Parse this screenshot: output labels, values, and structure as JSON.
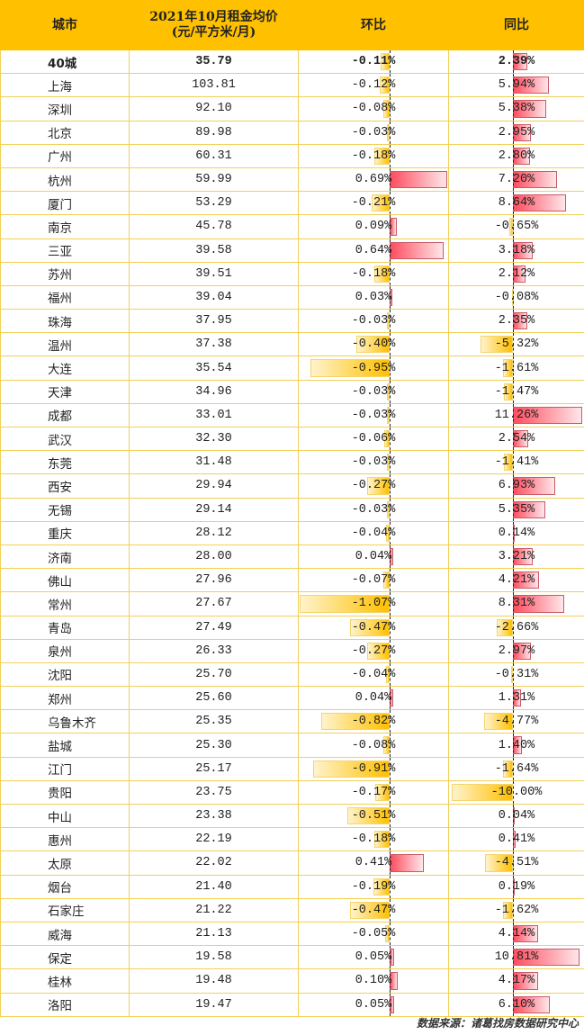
{
  "header": {
    "city": "城市",
    "price_line1": "2021年10月租金均价",
    "price_line2": "(元/平方米/月)",
    "mom": "环比",
    "yoy": "同比"
  },
  "colors": {
    "header_bg": "#ffc000",
    "negative_bar": "#ffc000",
    "positive_bar": "#ff4d5e",
    "grid": "#f2cf57"
  },
  "rows": [
    [
      "40城",
      "35.79",
      -0.11,
      2.39
    ],
    [
      "上海",
      "103.81",
      -0.12,
      5.94
    ],
    [
      "深圳",
      "92.10",
      -0.08,
      5.38
    ],
    [
      "北京",
      "89.98",
      -0.03,
      2.95
    ],
    [
      "广州",
      "60.31",
      -0.18,
      2.8
    ],
    [
      "杭州",
      "59.99",
      0.69,
      7.2
    ],
    [
      "厦门",
      "53.29",
      -0.21,
      8.64
    ],
    [
      "南京",
      "45.78",
      0.09,
      -0.65
    ],
    [
      "三亚",
      "39.58",
      0.64,
      3.18
    ],
    [
      "苏州",
      "39.51",
      -0.18,
      2.12
    ],
    [
      "福州",
      "39.04",
      0.03,
      -0.08
    ],
    [
      "珠海",
      "37.95",
      -0.03,
      2.35
    ],
    [
      "温州",
      "37.38",
      -0.4,
      -5.32
    ],
    [
      "大连",
      "35.54",
      -0.95,
      -1.61
    ],
    [
      "天津",
      "34.96",
      -0.03,
      -1.47
    ],
    [
      "成都",
      "33.01",
      -0.03,
      11.26
    ],
    [
      "武汉",
      "32.30",
      -0.06,
      2.54
    ],
    [
      "东莞",
      "31.48",
      -0.03,
      -1.41
    ],
    [
      "西安",
      "29.94",
      -0.27,
      6.93
    ],
    [
      "无锡",
      "29.14",
      -0.03,
      5.35
    ],
    [
      "重庆",
      "28.12",
      -0.04,
      0.14
    ],
    [
      "济南",
      "28.00",
      0.04,
      3.21
    ],
    [
      "佛山",
      "27.96",
      -0.07,
      4.21
    ],
    [
      "常州",
      "27.67",
      -1.07,
      8.31
    ],
    [
      "青岛",
      "27.49",
      -0.47,
      -2.66
    ],
    [
      "泉州",
      "26.33",
      -0.27,
      2.97
    ],
    [
      "沈阳",
      "25.70",
      -0.04,
      -0.31
    ],
    [
      "郑州",
      "25.60",
      0.04,
      1.31
    ],
    [
      "乌鲁木齐",
      "25.35",
      -0.82,
      -4.77
    ],
    [
      "盐城",
      "25.30",
      -0.08,
      1.4
    ],
    [
      "江门",
      "25.17",
      -0.91,
      -1.64
    ],
    [
      "贵阳",
      "23.75",
      -0.17,
      -10.0
    ],
    [
      "中山",
      "23.38",
      -0.51,
      0.04
    ],
    [
      "惠州",
      "22.19",
      -0.18,
      0.41
    ],
    [
      "太原",
      "22.02",
      0.41,
      -4.51
    ],
    [
      "烟台",
      "21.40",
      -0.19,
      0.19
    ],
    [
      "石家庄",
      "21.22",
      -0.47,
      -1.62
    ],
    [
      "威海",
      "21.13",
      -0.05,
      4.14
    ],
    [
      "保定",
      "19.58",
      0.05,
      10.81
    ],
    [
      "桂林",
      "19.48",
      0.1,
      4.17
    ],
    [
      "洛阳",
      "19.47",
      0.05,
      6.1
    ]
  ],
  "source": "数据来源：诸葛找房数据研究中心"
}
